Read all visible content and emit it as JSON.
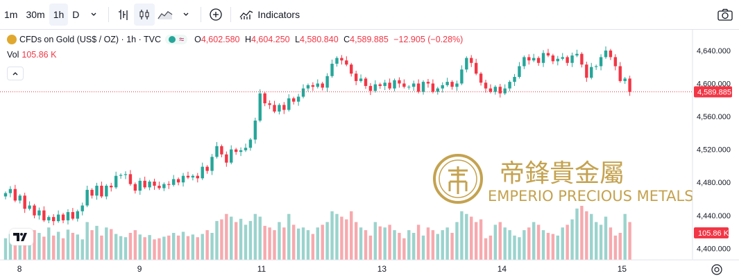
{
  "toolbar": {
    "intervals": [
      "1m",
      "30m",
      "1h",
      "D"
    ],
    "active_interval": "1h",
    "indicators_label": "Indicators",
    "icons": [
      "chevron-down-icon",
      "bar-chart-icon",
      "candles-icon",
      "area-chart-icon",
      "chevron-down-icon",
      "add-compare-icon",
      "indicators-icon",
      "camera-icon"
    ]
  },
  "legend": {
    "symbol": "CFDs on Gold (US$ / OZ) · 1h · TVC",
    "open_key": "O",
    "open": "4,602.580",
    "high_key": "H",
    "high": "4,604.250",
    "low_key": "L",
    "low": "4,580.840",
    "close_key": "C",
    "close": "4,589.885",
    "change": "−12.905 (−0.28%)",
    "vol_label": "Vol",
    "vol_value": "105.86 K"
  },
  "colors": {
    "up": "#26a69a",
    "down": "#f23645",
    "up_vol": "#9bd3cd",
    "down_vol": "#f7a9ae",
    "gold": "#c4a24f"
  },
  "watermark": {
    "cn": "帝鋒貴金屬",
    "en": "EMPERIO PRECIOUS METALS"
  },
  "chart_data": {
    "type": "candlestick",
    "title": "CFDs on Gold (US$ / OZ) · 1h · TVC",
    "y_ticks": [
      "4,640.000",
      "4,600.000",
      "4,560.000",
      "4,520.000",
      "4,480.000",
      "4,440.000",
      "4,400.000"
    ],
    "y_tick_values": [
      4640,
      4600,
      4560,
      4520,
      4480,
      4440,
      4400
    ],
    "ylim": [
      4386,
      4666
    ],
    "x_ticks": [
      "8",
      "9",
      "11",
      "13",
      "14",
      "15"
    ],
    "x_tick_index": [
      3,
      28,
      53,
      78,
      103,
      128
    ],
    "last_price_label": "4,589.885",
    "last_price": 4589.885,
    "volume_label": "105.86 K",
    "closes": [
      4467,
      4472,
      4458,
      4464,
      4448,
      4452,
      4440,
      4446,
      4434,
      4438,
      4433,
      4441,
      4434,
      4444,
      4436,
      4445,
      4452,
      4471,
      4464,
      4476,
      4463,
      4476,
      4474,
      4488,
      4489,
      4490,
      4478,
      4470,
      4482,
      4474,
      4481,
      4476,
      4473,
      4478,
      4477,
      4484,
      4480,
      4488,
      4486,
      4488,
      4485,
      4499,
      4494,
      4511,
      4524,
      4514,
      4504,
      4520,
      4517,
      4519,
      4522,
      4532,
      4555,
      4588,
      4576,
      4574,
      4566,
      4574,
      4568,
      4582,
      4578,
      4584,
      4594,
      4598,
      4596,
      4600,
      4595,
      4609,
      4624,
      4631,
      4628,
      4623,
      4612,
      4603,
      4606,
      4597,
      4591,
      4599,
      4597,
      4601,
      4594,
      4604,
      4600,
      4596,
      4596,
      4600,
      4590,
      4602,
      4600,
      4590,
      4594,
      4598,
      4602,
      4596,
      4600,
      4617,
      4631,
      4625,
      4612,
      4601,
      4594,
      4590,
      4596,
      4588,
      4594,
      4602,
      4608,
      4621,
      4632,
      4628,
      4631,
      4625,
      4637,
      4634,
      4627,
      4630,
      4632,
      4625,
      4634,
      4636,
      4623,
      4607,
      4620,
      4621,
      4632,
      4640,
      4632,
      4621,
      4603,
      4606,
      4590
    ],
    "volumes": [
      40,
      48,
      36,
      42,
      30,
      46,
      55,
      50,
      43,
      60,
      45,
      52,
      40,
      56,
      50,
      47,
      38,
      70,
      55,
      63,
      45,
      60,
      57,
      48,
      44,
      42,
      50,
      55,
      47,
      42,
      46,
      38,
      40,
      43,
      45,
      50,
      45,
      52,
      44,
      47,
      42,
      48,
      55,
      50,
      72,
      75,
      85,
      80,
      70,
      76,
      65,
      72,
      85,
      80,
      63,
      60,
      55,
      70,
      60,
      85,
      65,
      58,
      60,
      55,
      48,
      60,
      65,
      70,
      90,
      85,
      80,
      75,
      90,
      70,
      60,
      55,
      45,
      70,
      62,
      60,
      65,
      55,
      50,
      40,
      55,
      50,
      65,
      45,
      60,
      55,
      48,
      55,
      60,
      50,
      70,
      90,
      85,
      80,
      70,
      75,
      40,
      45,
      65,
      70,
      60,
      55,
      45,
      42,
      55,
      60,
      70,
      65,
      55,
      50,
      48,
      45,
      60,
      65,
      75,
      95,
      100,
      90,
      85,
      70,
      65,
      80,
      60,
      45,
      50,
      85,
      70
    ]
  }
}
